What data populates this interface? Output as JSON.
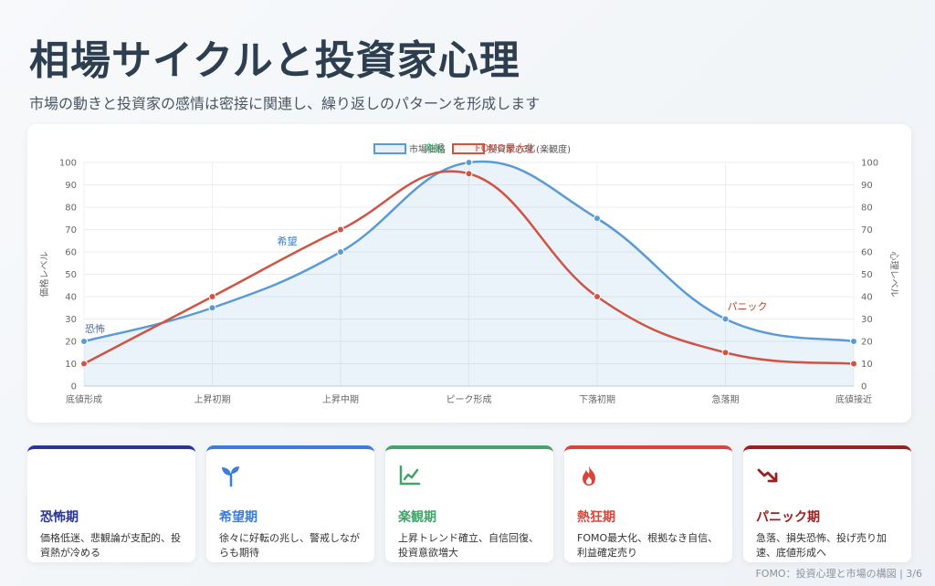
{
  "header": {
    "title": "相場サイクルと投資家心理",
    "subtitle": "市場の動きと投資家の感情は密接に関連し、繰り返しのパターンを形成します"
  },
  "chart_data": {
    "type": "line",
    "categories": [
      "底値形成",
      "上昇初期",
      "上昇中期",
      "ピーク形成",
      "下落初期",
      "急落期",
      "底値接近"
    ],
    "series": [
      {
        "name": "市場価格",
        "values": [
          20,
          35,
          60,
          100,
          75,
          30,
          20
        ],
        "color": "#5b9bd5",
        "fill": true
      },
      {
        "name": "投資家心理 (楽観度)",
        "values": [
          10,
          40,
          70,
          95,
          40,
          15,
          10
        ],
        "color": "#cf5446",
        "fill": false
      }
    ],
    "ylabel_left": "価格レベル",
    "ylabel_right": "心理レベル",
    "ylim": [
      0,
      100
    ],
    "yticks": [
      0,
      10,
      20,
      30,
      40,
      50,
      60,
      70,
      80,
      90,
      100
    ],
    "grid": true,
    "legend": "top-center",
    "annotations": [
      {
        "text": "恐怖",
        "category": "底値形成",
        "value": 20,
        "color": "#4a6a9a"
      },
      {
        "text": "希望",
        "category": "上昇初期",
        "value": 60,
        "color": "#3b82c4"
      },
      {
        "text": "FOMO最大化",
        "category": "ピーク形成",
        "value": 100,
        "color": "#cf5446"
      },
      {
        "text": "楽観",
        "category": "ピーク形成",
        "value": 100,
        "color": "#3aa66a"
      },
      {
        "text": "パニック",
        "category": "急落期",
        "value": 30,
        "color": "#b5462f"
      }
    ]
  },
  "cards": [
    {
      "title": "恐怖期",
      "desc": "価格低迷、悲観論が支配的、投資熱が冷める",
      "color": "#283593",
      "icon": "frown-icon"
    },
    {
      "title": "希望期",
      "desc": "徐々に好転の兆し、警戒しながらも期待",
      "color": "#3b7dd8",
      "icon": "seedling-icon"
    },
    {
      "title": "楽観期",
      "desc": "上昇トレンド確立、自信回復、投資意欲増大",
      "color": "#43a36a",
      "icon": "chart-line-icon"
    },
    {
      "title": "熱狂期",
      "desc": "FOMO最大化、根拠なき自信、利益確定売り",
      "color": "#d9453a",
      "icon": "fire-icon"
    },
    {
      "title": "パニック期",
      "desc": "急落、損失恐怖、投げ売り加速、底値形成へ",
      "color": "#9b2121",
      "icon": "trend-down-icon"
    }
  ],
  "footer": "FOMO：投資心理と市場の構図 | 3/6"
}
